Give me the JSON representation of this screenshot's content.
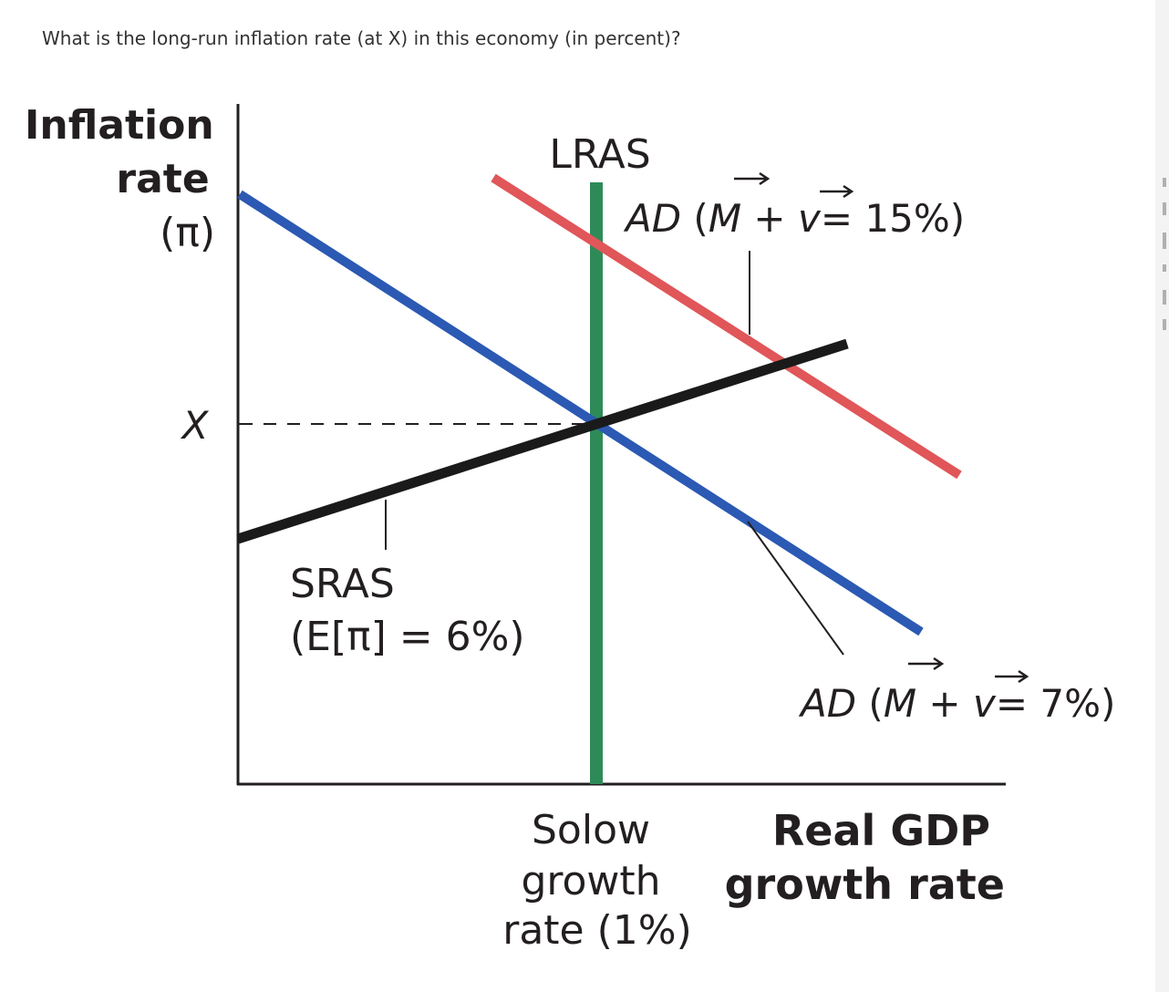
{
  "question": "What is the long-run inflation rate (at X) in this economy (in percent)?",
  "diagram": {
    "y_axis_label": [
      "Inflation",
      "rate",
      "(π)"
    ],
    "x_axis_label": [
      "Real GDP",
      "growth rate"
    ],
    "x_tick_label": [
      "Solow",
      "growth",
      "rate (1%)"
    ],
    "y_tick_label": "X",
    "lras_label": "LRAS",
    "sras_label": [
      "SRAS",
      "(E[π] = 6%)"
    ],
    "ad_high_label": {
      "ad": "AD",
      "open": " (",
      "m": "M",
      "plus": " + ",
      "v": "v",
      "rest": "= 15%)"
    },
    "ad_low_label": {
      "ad": "AD",
      "open": " (",
      "m": "M",
      "plus": " + ",
      "v": "v",
      "rest": "= 7%)"
    },
    "colors": {
      "ad_high": "#e05659",
      "ad_low": "#2b59b3",
      "lras": "#2e8b57",
      "sras": "#1a1a1a",
      "axes": "#231f20"
    }
  }
}
